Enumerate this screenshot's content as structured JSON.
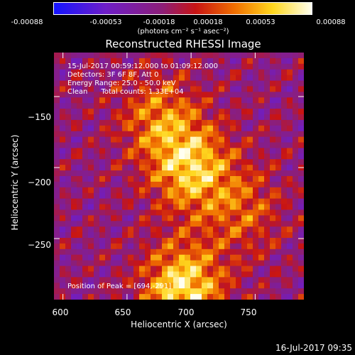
{
  "colorbar": {
    "ticks": [
      "-0.00088",
      "-0.00053",
      "-0.00018",
      "0.00018",
      "0.00053",
      "0.00088"
    ],
    "units": "(photons cm⁻² s⁻¹ asec⁻²)"
  },
  "title": "Reconstructed RHESSI Image",
  "annotations": {
    "time": "15-Jul-2017 00:59:12.000 to 01:09:12.000",
    "detectors": "Detectors: 3F 6F 8F, Att 0",
    "energy": "Energy Range: 25.0 - 50.0 keV",
    "clean": "Clean      Total counts: 1.33E+04",
    "peak": "Position of Peak = [694,-291]"
  },
  "xlabel": "Heliocentric X (arcsec)",
  "ylabel": "Heliocentric Y (arcsec)",
  "timestamp": "16-Jul-2017 09:35",
  "chart_data": {
    "type": "heatmap",
    "title": "Reconstructed RHESSI Image",
    "xlabel": "Heliocentric X (arcsec)",
    "ylabel": "Heliocentric Y (arcsec)",
    "xlim": [
      593,
      788
    ],
    "ylim": [
      -293,
      -119
    ],
    "xticks": [
      600,
      650,
      700,
      750
    ],
    "yticks": [
      -150,
      -200,
      -250
    ],
    "colorbar_range": [
      -0.00088,
      0.00088
    ],
    "colormap": "blue-purple-red-orange-yellow-white",
    "peak_position": [
      694,
      -291
    ],
    "sources": [
      {
        "x": 700,
        "y": -200,
        "intensity": 0.00075
      },
      {
        "x": 694,
        "y": -285,
        "intensity": 0.00088
      },
      {
        "x": 675,
        "y": -165,
        "intensity": 0.0005
      },
      {
        "x": 740,
        "y": -230,
        "intensity": 0.0004
      }
    ]
  }
}
